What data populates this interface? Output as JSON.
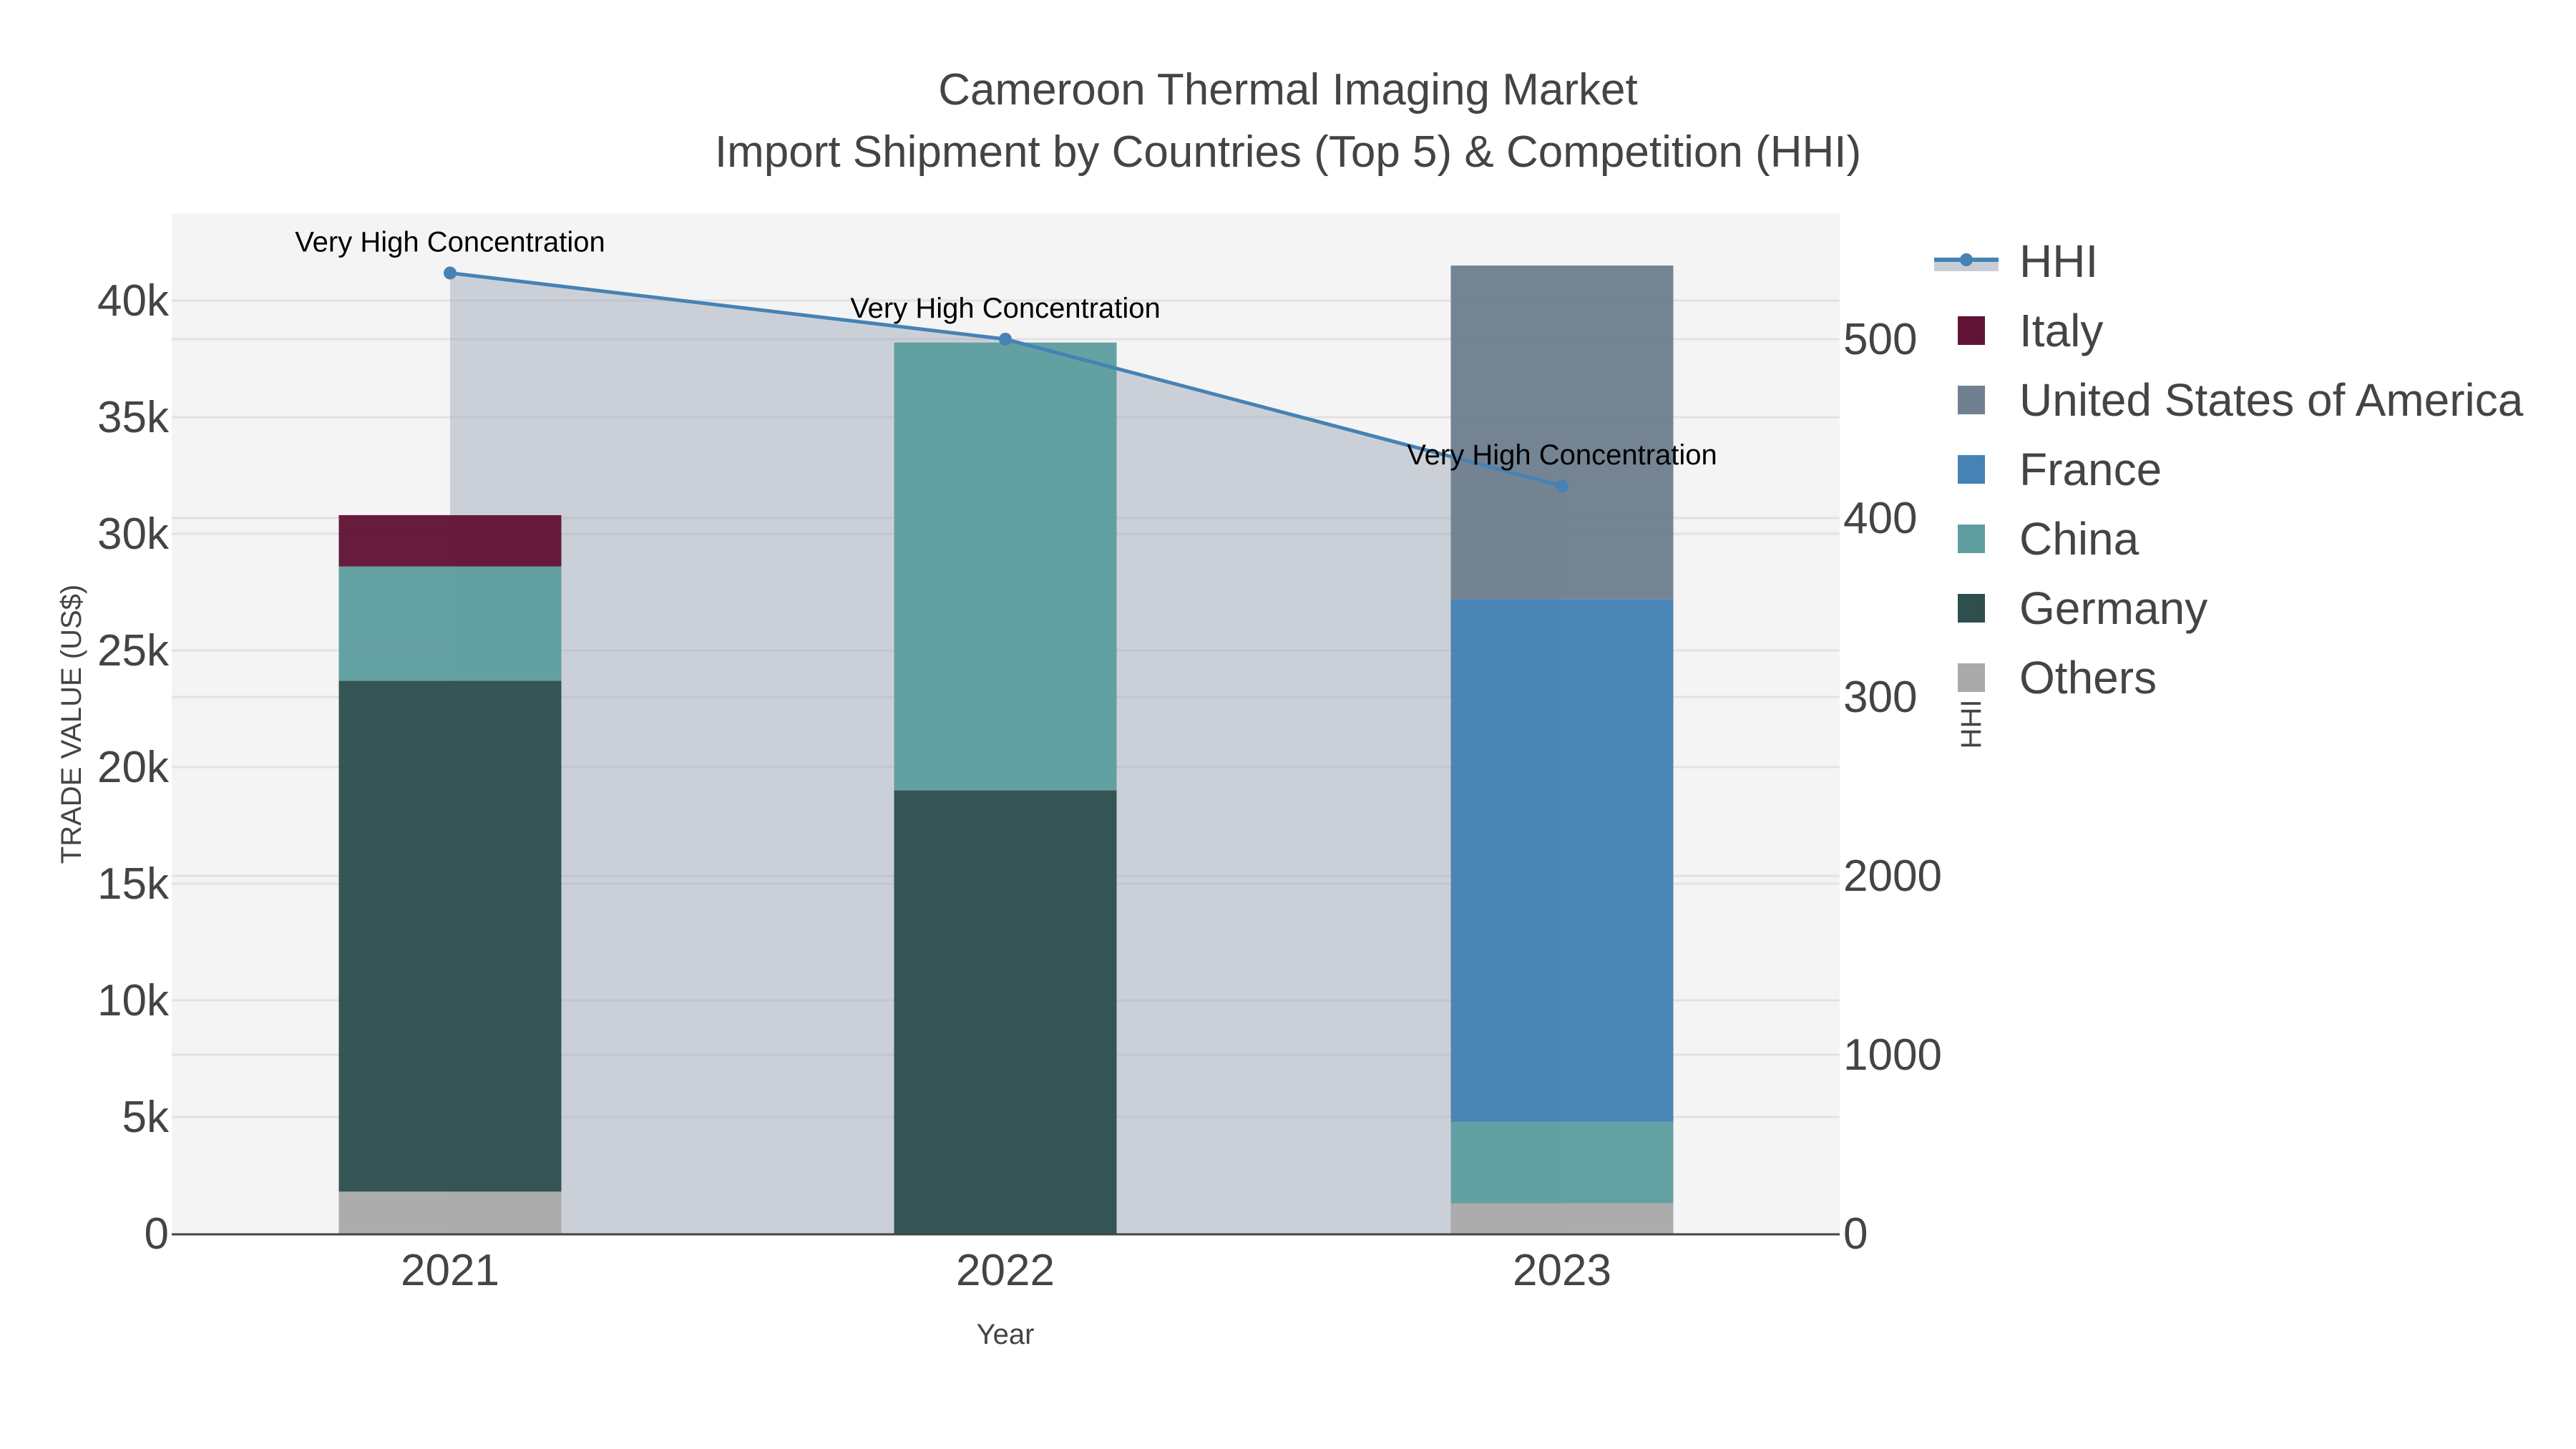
{
  "chart_data": {
    "type": "bar",
    "title": "Cameroon Thermal Imaging Market",
    "subtitle": "Import Shipment by Countries (Top 5) & Competition (HHI)",
    "xlabel": "Year",
    "ylabel": "TRADE VALUE (US$)",
    "y2label": "HHI",
    "categories": [
      "2021",
      "2022",
      "2023"
    ],
    "stacked": true,
    "series": [
      {
        "name": "Others",
        "color": "#a9a9a9",
        "values": [
          1800,
          0,
          1300
        ]
      },
      {
        "name": "Germany",
        "color": "#2f4f4f",
        "values": [
          21900,
          19000,
          0
        ]
      },
      {
        "name": "China",
        "color": "#5f9ea0",
        "values": [
          4900,
          19200,
          3500
        ]
      },
      {
        "name": "France",
        "color": "#4682b4",
        "values": [
          0,
          0,
          22400
        ]
      },
      {
        "name": "United States of America",
        "color": "#708090",
        "values": [
          0,
          0,
          14300
        ]
      },
      {
        "name": "Italy",
        "color": "#621437",
        "values": [
          2200,
          0,
          0
        ]
      }
    ],
    "line_series": {
      "name": "HHI",
      "axis": "right",
      "color": "#4682b4",
      "fill": "#c8cdd5",
      "values": [
        5370,
        5000,
        4180
      ],
      "annotations": [
        "Very High Concentration",
        "Very High Concentration",
        "Very High Concentration"
      ]
    },
    "ylim": [
      0,
      43500
    ],
    "y_ticks": [
      "0",
      "5k",
      "10k",
      "15k",
      "20k",
      "25k",
      "30k",
      "35k",
      "40k"
    ],
    "y2_ticks": [
      "0",
      "1000",
      "2000",
      "300",
      "400",
      "500"
    ],
    "grid": true,
    "legend_position": "right"
  },
  "legend": {
    "items": [
      {
        "label": "HHI",
        "color": "#4682b4"
      },
      {
        "label": "Italy",
        "color": "#621437"
      },
      {
        "label": "United States of America",
        "color": "#708090"
      },
      {
        "label": "France",
        "color": "#4682b4"
      },
      {
        "label": "China",
        "color": "#5f9ea0"
      },
      {
        "label": "Germany",
        "color": "#2f4f4f"
      },
      {
        "label": "Others",
        "color": "#a9a9a9"
      }
    ]
  }
}
